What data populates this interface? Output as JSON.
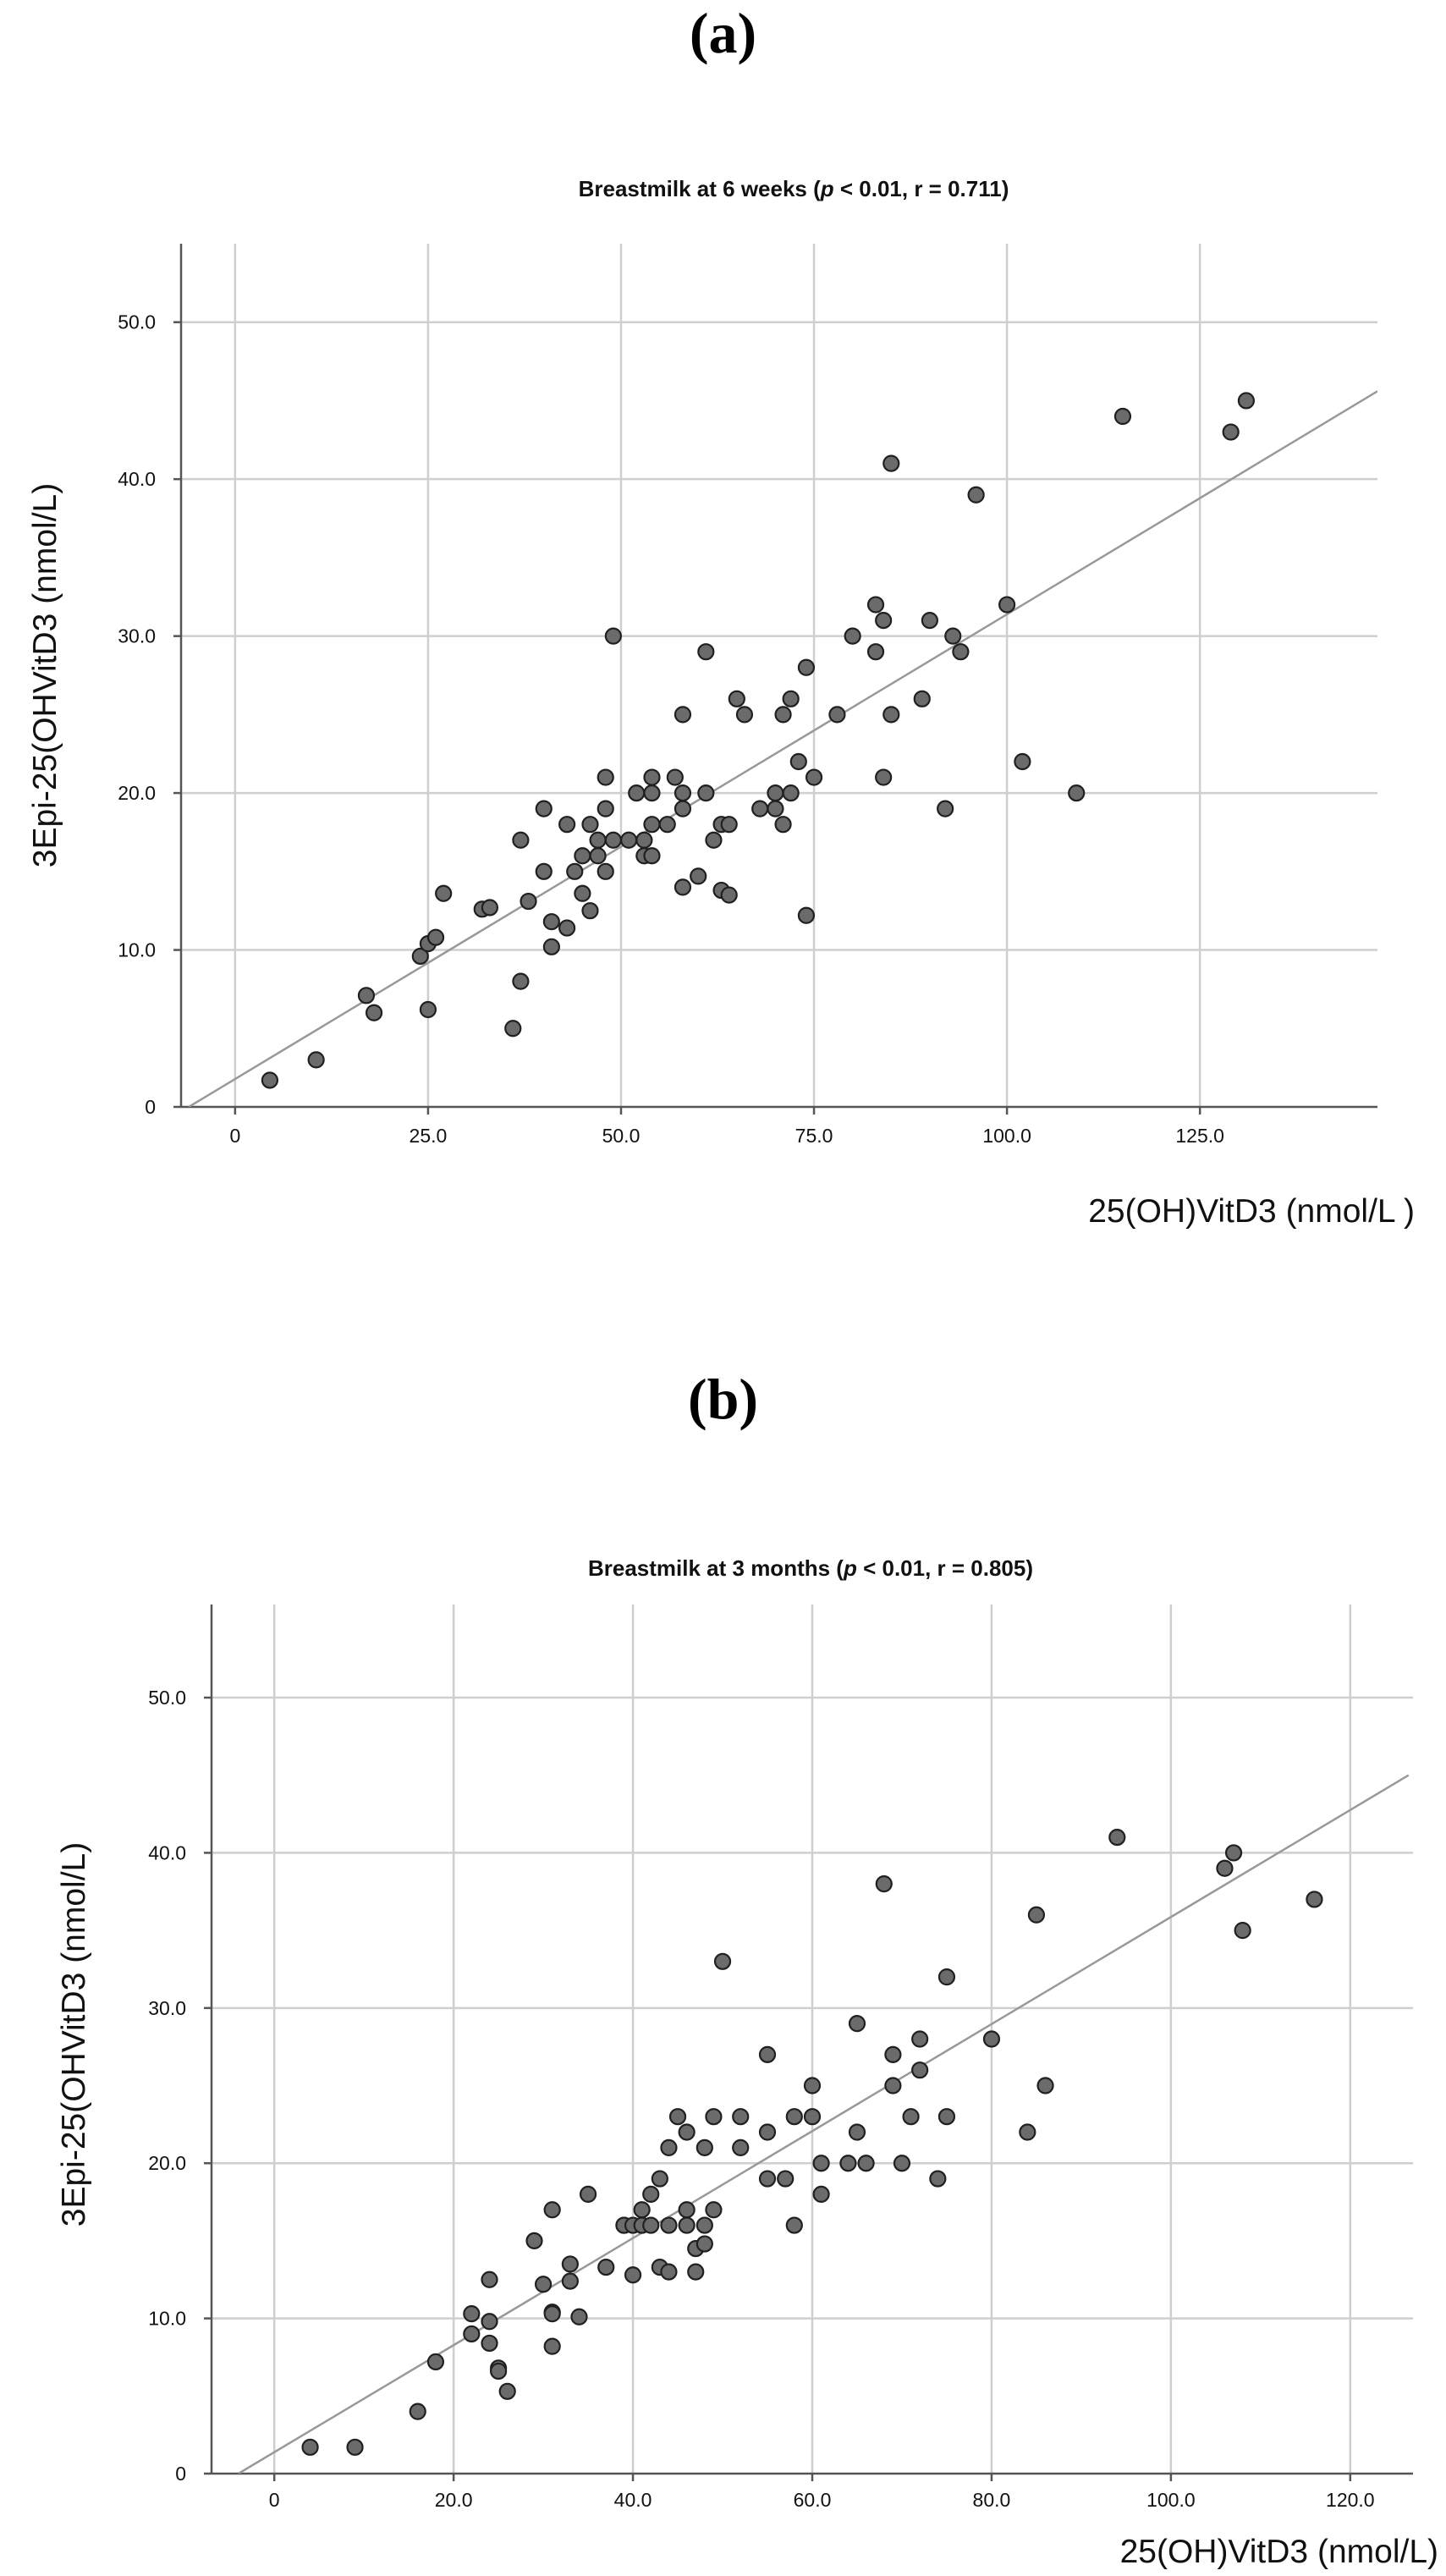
{
  "panels": [
    {
      "label": "(a)"
    },
    {
      "label": "(b)"
    }
  ],
  "chart_data": [
    {
      "type": "scatter",
      "title_parts": [
        "Breastmilk at 6 weeks (",
        "p",
        " < 0.01, r = 0.711)"
      ],
      "xlabel": "25(OH)VitD3 (nmol/L )",
      "ylabel": "3Epi-25(OHVitD3 (nmol/L)",
      "xlim": [
        -7,
        148
      ],
      "ylim": [
        0,
        55
      ],
      "x_ticks": [
        0,
        25,
        50,
        75,
        100,
        125
      ],
      "x_tick_labels": [
        "0",
        "25.0",
        "50.0",
        "75.0",
        "100.0",
        "125.0"
      ],
      "y_ticks": [
        0,
        10,
        20,
        30,
        40,
        50
      ],
      "y_tick_labels": [
        "0",
        "10.0",
        "20.0",
        "30.0",
        "40.0",
        "50.0"
      ],
      "grid": true,
      "fit_line": {
        "x": [
          -6,
          148
        ],
        "y": [
          0,
          45.6
        ]
      },
      "series": [
        {
          "points": [
            [
              4.5,
              1.7
            ],
            [
              10.5,
              3
            ],
            [
              17,
              7.1
            ],
            [
              18,
              6
            ],
            [
              24,
              9.6
            ],
            [
              25,
              10.4
            ],
            [
              25,
              6.2
            ],
            [
              26,
              10.8
            ],
            [
              27,
              13.6
            ],
            [
              32,
              12.6
            ],
            [
              33,
              12.7
            ],
            [
              36,
              5
            ],
            [
              37,
              8
            ],
            [
              37,
              17
            ],
            [
              38,
              13.1
            ],
            [
              40,
              15
            ],
            [
              40,
              19
            ],
            [
              41,
              11.8
            ],
            [
              41,
              10.2
            ],
            [
              43,
              11.4
            ],
            [
              43,
              18
            ],
            [
              44,
              15
            ],
            [
              45,
              16
            ],
            [
              45,
              13.6
            ],
            [
              46,
              18
            ],
            [
              46,
              12.5
            ],
            [
              47,
              16
            ],
            [
              47,
              17
            ],
            [
              48,
              21
            ],
            [
              48,
              19
            ],
            [
              48,
              15
            ],
            [
              49,
              17
            ],
            [
              49,
              30
            ],
            [
              51,
              17
            ],
            [
              52,
              20
            ],
            [
              53,
              17
            ],
            [
              53,
              16
            ],
            [
              54,
              21
            ],
            [
              54,
              20
            ],
            [
              54,
              18
            ],
            [
              54,
              16
            ],
            [
              56,
              18
            ],
            [
              57,
              21
            ],
            [
              58,
              25
            ],
            [
              58,
              20
            ],
            [
              58,
              19
            ],
            [
              58,
              14
            ],
            [
              60,
              14.7
            ],
            [
              61,
              20
            ],
            [
              61,
              29
            ],
            [
              62,
              17
            ],
            [
              63,
              18
            ],
            [
              63,
              13.8
            ],
            [
              64,
              18
            ],
            [
              64,
              13.5
            ],
            [
              65,
              26
            ],
            [
              66,
              25
            ],
            [
              68,
              19
            ],
            [
              70,
              19
            ],
            [
              70,
              20
            ],
            [
              71,
              25
            ],
            [
              71,
              18
            ],
            [
              72,
              26
            ],
            [
              72,
              20
            ],
            [
              73,
              22
            ],
            [
              74,
              28
            ],
            [
              74,
              12.2
            ],
            [
              75,
              21
            ],
            [
              78,
              25
            ],
            [
              80,
              30
            ],
            [
              83,
              32
            ],
            [
              83,
              29
            ],
            [
              84,
              31
            ],
            [
              84,
              21
            ],
            [
              85,
              25
            ],
            [
              85,
              41
            ],
            [
              89,
              26
            ],
            [
              90,
              31
            ],
            [
              92,
              19
            ],
            [
              93,
              30
            ],
            [
              94,
              29
            ],
            [
              96,
              39
            ],
            [
              100,
              32
            ],
            [
              102,
              22
            ],
            [
              109,
              20
            ],
            [
              115,
              44
            ],
            [
              129,
              43
            ],
            [
              131,
              45
            ]
          ]
        }
      ]
    },
    {
      "type": "scatter",
      "title_parts": [
        "Breastmilk at 3 months (",
        "p",
        " < 0.01, r = 0.805)"
      ],
      "xlabel": "25(OH)VitD3 (nmol/L)",
      "ylabel": "3Epi-25(OHVitD3 (nmol/L)",
      "xlim": [
        -7,
        127
      ],
      "ylim": [
        0,
        56
      ],
      "x_ticks": [
        0,
        20,
        40,
        60,
        80,
        100,
        120
      ],
      "x_tick_labels": [
        "0",
        "20.0",
        "40.0",
        "60.0",
        "80.0",
        "100.0",
        "120.0"
      ],
      "y_ticks": [
        0,
        10,
        20,
        30,
        40,
        50
      ],
      "y_tick_labels": [
        "0",
        "10.0",
        "20.0",
        "30.0",
        "40.0",
        "50.0"
      ],
      "grid": true,
      "fit_line": {
        "x": [
          -4,
          126.5
        ],
        "y": [
          0,
          45
        ]
      },
      "series": [
        {
          "points": [
            [
              4,
              1.7
            ],
            [
              9,
              1.7
            ],
            [
              16,
              4
            ],
            [
              18,
              7.2
            ],
            [
              22,
              10.3
            ],
            [
              22,
              9
            ],
            [
              24,
              12.5
            ],
            [
              24,
              9.8
            ],
            [
              24,
              8.4
            ],
            [
              25,
              6.8
            ],
            [
              25,
              6.6
            ],
            [
              26,
              5.3
            ],
            [
              29,
              15
            ],
            [
              30,
              12.2
            ],
            [
              31,
              17
            ],
            [
              31,
              10.4
            ],
            [
              31,
              10.3
            ],
            [
              31,
              8.2
            ],
            [
              33,
              13.5
            ],
            [
              33,
              12.4
            ],
            [
              34,
              10.1
            ],
            [
              35,
              18
            ],
            [
              37,
              13.3
            ],
            [
              39,
              16
            ],
            [
              39,
              16
            ],
            [
              40,
              16
            ],
            [
              40,
              12.8
            ],
            [
              41,
              16
            ],
            [
              41,
              17
            ],
            [
              42,
              18
            ],
            [
              42,
              16
            ],
            [
              43,
              19
            ],
            [
              43,
              13.3
            ],
            [
              44,
              21
            ],
            [
              44,
              16
            ],
            [
              44,
              13
            ],
            [
              45,
              23
            ],
            [
              46,
              22
            ],
            [
              46,
              17
            ],
            [
              46,
              16
            ],
            [
              47,
              14.5
            ],
            [
              47,
              13
            ],
            [
              48,
              21
            ],
            [
              48,
              16
            ],
            [
              48,
              14.8
            ],
            [
              49,
              23
            ],
            [
              49,
              17
            ],
            [
              50,
              33
            ],
            [
              52,
              23
            ],
            [
              52,
              21
            ],
            [
              55,
              27
            ],
            [
              55,
              22
            ],
            [
              55,
              19
            ],
            [
              57,
              19
            ],
            [
              58,
              23
            ],
            [
              58,
              16
            ],
            [
              60,
              25
            ],
            [
              60,
              23
            ],
            [
              61,
              20
            ],
            [
              61,
              18
            ],
            [
              64,
              20
            ],
            [
              65,
              29
            ],
            [
              65,
              22
            ],
            [
              66,
              20
            ],
            [
              68,
              38
            ],
            [
              69,
              27
            ],
            [
              69,
              25
            ],
            [
              70,
              20
            ],
            [
              71,
              23
            ],
            [
              72,
              28
            ],
            [
              72,
              26
            ],
            [
              74,
              19
            ],
            [
              75,
              32
            ],
            [
              75,
              23
            ],
            [
              80,
              28
            ],
            [
              84,
              22
            ],
            [
              85,
              36
            ],
            [
              86,
              25
            ],
            [
              94,
              41
            ],
            [
              106,
              39
            ],
            [
              107,
              40
            ],
            [
              108,
              35
            ],
            [
              116,
              37
            ]
          ]
        }
      ]
    }
  ]
}
